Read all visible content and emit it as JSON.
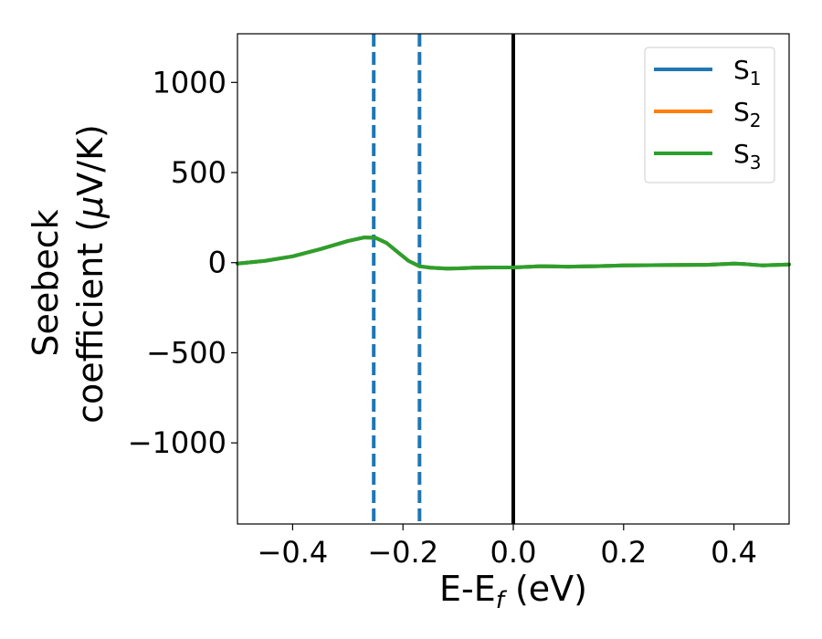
{
  "chart_data": {
    "type": "line",
    "xlabel": "E-E",
    "xlabel_sub": "f",
    "xlabel_unit": " (eV)",
    "ylabel_line1": "Seebeck",
    "ylabel_line2": "coefficient  (",
    "ylabel_mu": "μ",
    "ylabel_unit": "V/K)",
    "xlim": [
      -0.5,
      0.5
    ],
    "ylim": [
      -1450,
      1270
    ],
    "xticks": [
      -0.4,
      -0.2,
      0.0,
      0.2,
      0.4
    ],
    "xtick_labels": [
      "−0.4",
      "−0.2",
      "0.0",
      "0.2",
      "0.4"
    ],
    "yticks": [
      -1000,
      -500,
      0,
      500,
      1000
    ],
    "ytick_labels": [
      "−1000",
      "−500",
      "0",
      "500",
      "1000"
    ],
    "grid": false,
    "legend_position": "top-right",
    "x": [
      -0.5,
      -0.45,
      -0.4,
      -0.35,
      -0.3,
      -0.27,
      -0.25,
      -0.23,
      -0.21,
      -0.19,
      -0.17,
      -0.15,
      -0.12,
      -0.1,
      -0.07,
      -0.04,
      0.0,
      0.05,
      0.1,
      0.15,
      0.2,
      0.25,
      0.3,
      0.35,
      0.4,
      0.42,
      0.45,
      0.5
    ],
    "series": [
      {
        "name": "S",
        "sub": "1",
        "color": "#1f77b4",
        "values": [
          -5,
          10,
          35,
          75,
          120,
          140,
          138,
          110,
          60,
          10,
          -20,
          -28,
          -33,
          -32,
          -28,
          -27,
          -27,
          -20,
          -22,
          -20,
          -15,
          -14,
          -13,
          -12,
          -5,
          -8,
          -15,
          -10
        ]
      },
      {
        "name": "S",
        "sub": "2",
        "color": "#ff7f0e",
        "values": [
          -5,
          10,
          35,
          75,
          120,
          140,
          138,
          110,
          60,
          10,
          -20,
          -28,
          -33,
          -32,
          -28,
          -27,
          -27,
          -20,
          -22,
          -20,
          -15,
          -14,
          -13,
          -12,
          -5,
          -8,
          -15,
          -10
        ]
      },
      {
        "name": "S",
        "sub": "3",
        "color": "#2ca02c",
        "values": [
          -5,
          10,
          35,
          75,
          120,
          140,
          138,
          110,
          60,
          10,
          -20,
          -28,
          -33,
          -32,
          -28,
          -27,
          -27,
          -20,
          -22,
          -20,
          -15,
          -14,
          -13,
          -12,
          -5,
          -8,
          -15,
          -10
        ]
      }
    ],
    "vlines": [
      {
        "x": -0.253,
        "style": "dashed",
        "color": "#1f77b4"
      },
      {
        "x": -0.17,
        "style": "dashed",
        "color": "#1f77b4"
      },
      {
        "x": 0.0,
        "style": "solid",
        "color": "#000000"
      }
    ]
  }
}
